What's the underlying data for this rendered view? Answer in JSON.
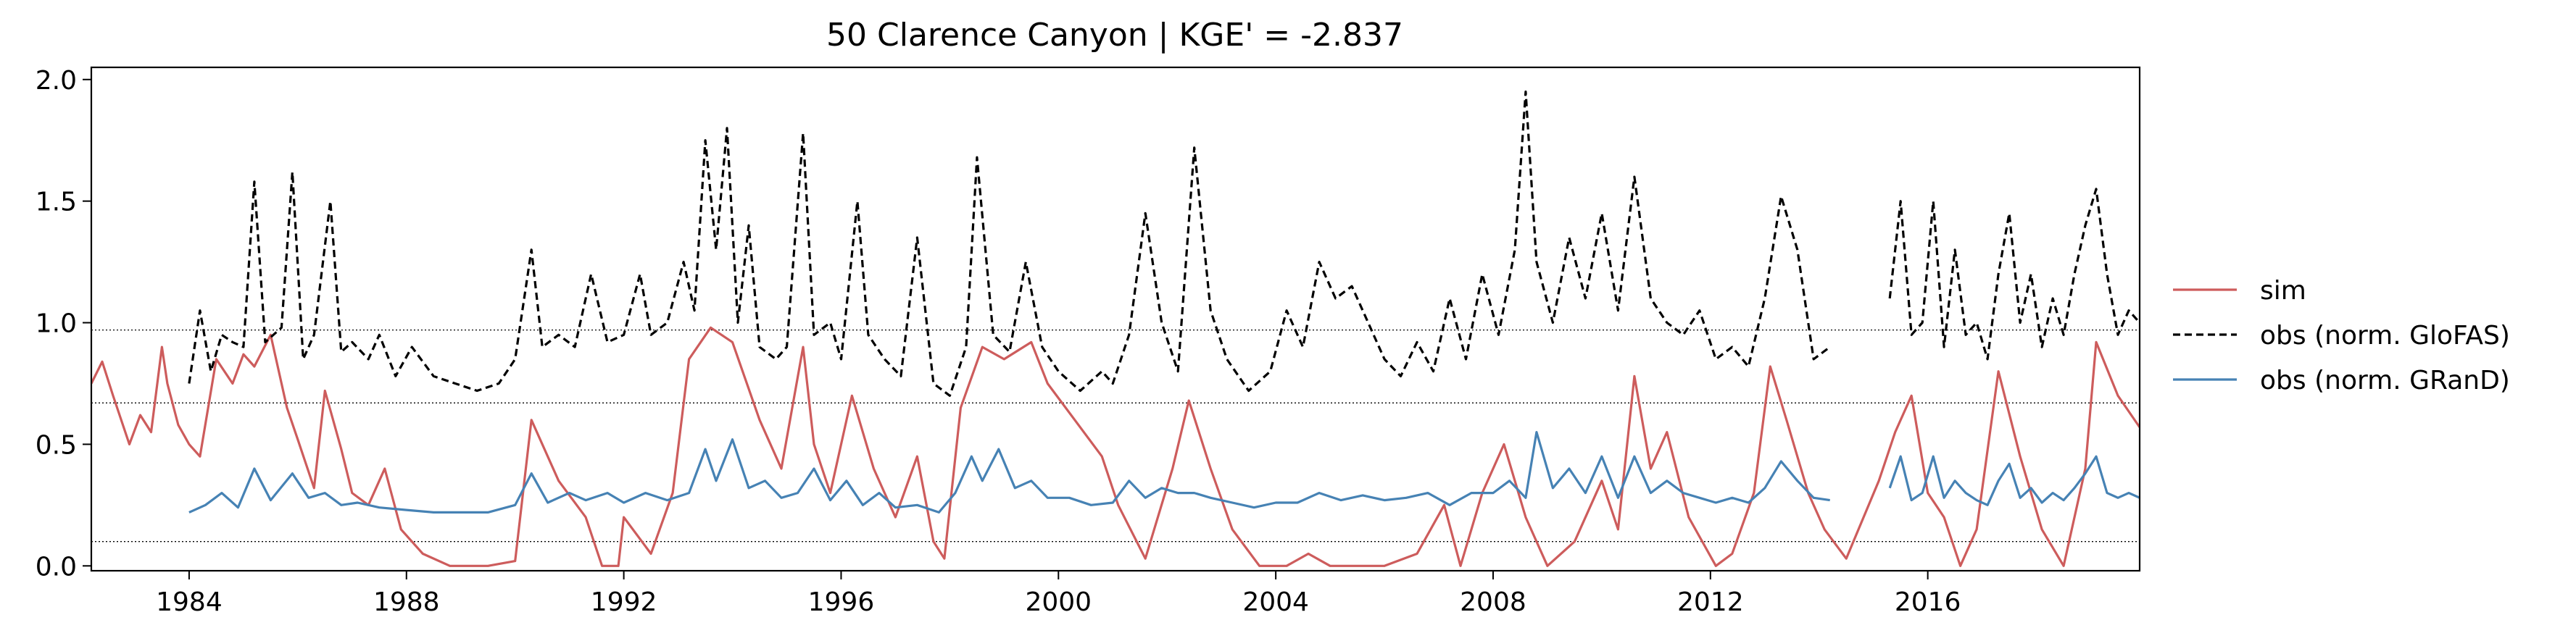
{
  "chart_data": {
    "type": "line",
    "title": "50  Clarence Canyon | KGE' = -2.837",
    "xlabel": "",
    "ylabel": "",
    "xlim": [
      1982.2,
      2019.9
    ],
    "ylim": [
      -0.02,
      2.05
    ],
    "x_ticks": [
      {
        "value": 1984,
        "label": "1984"
      },
      {
        "value": 1988,
        "label": "1988"
      },
      {
        "value": 1992,
        "label": "1992"
      },
      {
        "value": 1996,
        "label": "1996"
      },
      {
        "value": 2000,
        "label": "2000"
      },
      {
        "value": 2004,
        "label": "2004"
      },
      {
        "value": 2008,
        "label": "2008"
      },
      {
        "value": 2012,
        "label": "2012"
      },
      {
        "value": 2016,
        "label": "2016"
      }
    ],
    "y_ticks": [
      {
        "value": 0.0,
        "label": "0.0"
      },
      {
        "value": 0.5,
        "label": "0.5"
      },
      {
        "value": 1.0,
        "label": "1.0"
      },
      {
        "value": 1.5,
        "label": "1.5"
      },
      {
        "value": 2.0,
        "label": "2.0"
      }
    ],
    "hlines": [
      0.97,
      0.67,
      0.1
    ],
    "grid": false,
    "legend_position": "right-outside",
    "series": [
      {
        "name": "sim",
        "color": "#cd5c5c",
        "style": "solid",
        "x": [
          1982.2,
          1982.4,
          1982.6,
          1982.9,
          1983.1,
          1983.3,
          1983.5,
          1983.6,
          1983.8,
          1984.0,
          1984.2,
          1984.5,
          1984.8,
          1985.0,
          1985.2,
          1985.5,
          1985.8,
          1986.0,
          1986.3,
          1986.5,
          1986.8,
          1987.0,
          1987.3,
          1987.6,
          1987.9,
          1988.3,
          1988.8,
          1989.5,
          1990.0,
          1990.3,
          1990.8,
          1991.3,
          1991.6,
          1991.9,
          1992.0,
          1992.5,
          1992.9,
          1993.2,
          1993.6,
          1994.0,
          1994.5,
          1994.9,
          1995.3,
          1995.5,
          1995.8,
          1996.2,
          1996.6,
          1997.0,
          1997.4,
          1997.7,
          1997.9,
          1998.2,
          1998.6,
          1999.0,
          1999.5,
          1999.8,
          2000.3,
          2000.8,
          2001.1,
          2001.6,
          2002.1,
          2002.4,
          2002.8,
          2003.2,
          2003.7,
          2004.2,
          2004.6,
          2005.0,
          2005.5,
          2006.0,
          2006.6,
          2007.1,
          2007.4,
          2007.8,
          2008.2,
          2008.6,
          2009.0,
          2009.5,
          2010.0,
          2010.3,
          2010.6,
          2010.9,
          2011.2,
          2011.6,
          2012.1,
          2012.4,
          2012.8,
          2013.1,
          2013.4,
          2013.8,
          2014.1,
          2014.5,
          2015.1,
          2015.4,
          2015.7,
          2016.0,
          2016.3,
          2016.6,
          2016.9,
          2017.3,
          2017.7,
          2018.1,
          2018.5,
          2018.9,
          2019.1,
          2019.5,
          2019.9
        ],
        "y": [
          0.75,
          0.84,
          0.7,
          0.5,
          0.62,
          0.55,
          0.9,
          0.75,
          0.58,
          0.5,
          0.45,
          0.85,
          0.75,
          0.87,
          0.82,
          0.95,
          0.65,
          0.52,
          0.32,
          0.72,
          0.48,
          0.3,
          0.25,
          0.4,
          0.15,
          0.05,
          0.0,
          0.0,
          0.02,
          0.6,
          0.35,
          0.2,
          0.0,
          0.0,
          0.2,
          0.05,
          0.3,
          0.85,
          0.98,
          0.92,
          0.6,
          0.4,
          0.9,
          0.5,
          0.3,
          0.7,
          0.4,
          0.2,
          0.45,
          0.1,
          0.03,
          0.65,
          0.9,
          0.85,
          0.92,
          0.75,
          0.6,
          0.45,
          0.25,
          0.03,
          0.4,
          0.68,
          0.4,
          0.15,
          0.0,
          0.0,
          0.05,
          0.0,
          0.0,
          0.0,
          0.05,
          0.25,
          0.0,
          0.3,
          0.5,
          0.2,
          0.0,
          0.1,
          0.35,
          0.15,
          0.78,
          0.4,
          0.55,
          0.2,
          0.0,
          0.05,
          0.3,
          0.82,
          0.6,
          0.3,
          0.15,
          0.03,
          0.35,
          0.55,
          0.7,
          0.3,
          0.2,
          0.0,
          0.15,
          0.8,
          0.45,
          0.15,
          0.0,
          0.4,
          0.92,
          0.7,
          0.57
        ]
      },
      {
        "name": "obs (norm. GloFAS)",
        "color": "#000000",
        "style": "dashed",
        "x": [
          1984.0,
          1984.2,
          1984.4,
          1984.6,
          1984.8,
          1985.0,
          1985.2,
          1985.4,
          1985.7,
          1985.9,
          1986.1,
          1986.3,
          1986.6,
          1986.8,
          1987.0,
          1987.3,
          1987.5,
          1987.8,
          1988.1,
          1988.5,
          1988.9,
          1989.3,
          1989.7,
          1990.0,
          1990.3,
          1990.5,
          1990.8,
          1991.1,
          1991.4,
          1991.7,
          1992.0,
          1992.3,
          1992.5,
          1992.8,
          1993.1,
          1993.3,
          1993.5,
          1993.7,
          1993.9,
          1994.1,
          1994.3,
          1994.5,
          1994.8,
          1995.0,
          1995.3,
          1995.5,
          1995.8,
          1996.0,
          1996.3,
          1996.5,
          1996.8,
          1997.1,
          1997.4,
          1997.7,
          1998.0,
          1998.3,
          1998.5,
          1998.8,
          1999.1,
          1999.4,
          1999.7,
          2000.0,
          2000.4,
          2000.8,
          2001.0,
          2001.3,
          2001.6,
          2001.9,
          2002.2,
          2002.5,
          2002.8,
          2003.1,
          2003.5,
          2003.9,
          2004.2,
          2004.5,
          2004.8,
          2005.1,
          2005.4,
          2005.7,
          2006.0,
          2006.3,
          2006.6,
          2006.9,
          2007.2,
          2007.5,
          2007.8,
          2008.1,
          2008.4,
          2008.6,
          2008.8,
          2009.1,
          2009.4,
          2009.7,
          2010.0,
          2010.3,
          2010.6,
          2010.9,
          2011.2,
          2011.5,
          2011.8,
          2012.1,
          2012.4,
          2012.7,
          2013.0,
          2013.3,
          2013.6,
          2013.9,
          2014.2
        ],
        "y": [
          0.75,
          1.05,
          0.8,
          0.95,
          0.92,
          0.9,
          1.58,
          0.92,
          0.98,
          1.62,
          0.85,
          0.95,
          1.5,
          0.88,
          0.92,
          0.85,
          0.95,
          0.78,
          0.9,
          0.78,
          0.75,
          0.72,
          0.75,
          0.85,
          1.3,
          0.9,
          0.95,
          0.9,
          1.2,
          0.92,
          0.95,
          1.2,
          0.95,
          1.0,
          1.25,
          1.05,
          1.75,
          1.3,
          1.8,
          1.0,
          1.4,
          0.9,
          0.85,
          0.9,
          1.78,
          0.95,
          1.0,
          0.85,
          1.5,
          0.95,
          0.85,
          0.78,
          1.35,
          0.75,
          0.7,
          0.9,
          1.68,
          0.95,
          0.88,
          1.25,
          0.9,
          0.8,
          0.72,
          0.8,
          0.75,
          0.95,
          1.45,
          1.0,
          0.8,
          1.72,
          1.05,
          0.85,
          0.72,
          0.8,
          1.05,
          0.9,
          1.25,
          1.1,
          1.15,
          1.0,
          0.85,
          0.78,
          0.92,
          0.8,
          1.1,
          0.85,
          1.2,
          0.95,
          1.3,
          1.95,
          1.25,
          1.0,
          1.35,
          1.1,
          1.45,
          1.05,
          1.6,
          1.1,
          1.0,
          0.95,
          1.05,
          0.85,
          0.9,
          0.82,
          1.1,
          1.52,
          1.3,
          0.85,
          0.9
        ]
      },
      {
        "name": "obs (norm. GRanD)",
        "color": "#4682b4",
        "style": "solid",
        "x": [
          1984.0,
          1984.3,
          1984.6,
          1984.9,
          1985.2,
          1985.5,
          1985.9,
          1986.2,
          1986.5,
          1986.8,
          1987.1,
          1987.5,
          1988.0,
          1988.5,
          1989.0,
          1989.5,
          1990.0,
          1990.3,
          1990.6,
          1991.0,
          1991.3,
          1991.7,
          1992.0,
          1992.4,
          1992.8,
          1993.2,
          1993.5,
          1993.7,
          1994.0,
          1994.3,
          1994.6,
          1994.9,
          1995.2,
          1995.5,
          1995.8,
          1996.1,
          1996.4,
          1996.7,
          1997.0,
          1997.4,
          1997.8,
          1998.1,
          1998.4,
          1998.6,
          1998.9,
          1999.2,
          1999.5,
          1999.8,
          2000.2,
          2000.6,
          2001.0,
          2001.3,
          2001.6,
          2001.9,
          2002.2,
          2002.5,
          2002.8,
          2003.2,
          2003.6,
          2004.0,
          2004.4,
          2004.8,
          2005.2,
          2005.6,
          2006.0,
          2006.4,
          2006.8,
          2007.2,
          2007.6,
          2008.0,
          2008.3,
          2008.6,
          2008.8,
          2009.1,
          2009.4,
          2009.7,
          2010.0,
          2010.3,
          2010.6,
          2010.9,
          2011.2,
          2011.5,
          2011.8,
          2012.1,
          2012.4,
          2012.7,
          2013.0,
          2013.3,
          2013.6,
          2013.9,
          2014.2
        ],
        "y": [
          0.22,
          0.25,
          0.3,
          0.24,
          0.4,
          0.27,
          0.38,
          0.28,
          0.3,
          0.25,
          0.26,
          0.24,
          0.23,
          0.22,
          0.22,
          0.22,
          0.25,
          0.38,
          0.26,
          0.3,
          0.27,
          0.3,
          0.26,
          0.3,
          0.27,
          0.3,
          0.48,
          0.35,
          0.52,
          0.32,
          0.35,
          0.28,
          0.3,
          0.4,
          0.27,
          0.35,
          0.25,
          0.3,
          0.24,
          0.25,
          0.22,
          0.3,
          0.45,
          0.35,
          0.48,
          0.32,
          0.35,
          0.28,
          0.28,
          0.25,
          0.26,
          0.35,
          0.28,
          0.32,
          0.3,
          0.3,
          0.28,
          0.26,
          0.24,
          0.26,
          0.26,
          0.3,
          0.27,
          0.29,
          0.27,
          0.28,
          0.3,
          0.25,
          0.3,
          0.3,
          0.35,
          0.28,
          0.55,
          0.32,
          0.4,
          0.3,
          0.45,
          0.28,
          0.45,
          0.3,
          0.35,
          0.3,
          0.28,
          0.26,
          0.28,
          0.26,
          0.32,
          0.43,
          0.35,
          0.28,
          0.27
        ]
      },
      {
        "name": "",
        "color": "#000000",
        "style": "dashed",
        "x": [
          2015.3,
          2015.5,
          2015.7,
          2015.9,
          2016.1,
          2016.3,
          2016.5,
          2016.7,
          2016.9,
          2017.1,
          2017.3,
          2017.5,
          2017.7,
          2017.9,
          2018.1,
          2018.3,
          2018.5,
          2018.7,
          2018.9,
          2019.1,
          2019.3,
          2019.5,
          2019.7,
          2019.9
        ],
        "y": [
          1.1,
          1.5,
          0.95,
          1.0,
          1.5,
          0.9,
          1.3,
          0.95,
          1.0,
          0.85,
          1.2,
          1.45,
          1.0,
          1.2,
          0.9,
          1.1,
          0.95,
          1.2,
          1.4,
          1.55,
          1.2,
          0.95,
          1.05,
          1.0
        ]
      },
      {
        "name": "",
        "color": "#4682b4",
        "style": "solid",
        "x": [
          2015.3,
          2015.5,
          2015.7,
          2015.9,
          2016.1,
          2016.3,
          2016.5,
          2016.7,
          2016.9,
          2017.1,
          2017.3,
          2017.5,
          2017.7,
          2017.9,
          2018.1,
          2018.3,
          2018.5,
          2018.7,
          2018.9,
          2019.1,
          2019.3,
          2019.5,
          2019.7,
          2019.9
        ],
        "y": [
          0.32,
          0.45,
          0.27,
          0.3,
          0.45,
          0.28,
          0.35,
          0.3,
          0.27,
          0.25,
          0.35,
          0.42,
          0.28,
          0.32,
          0.26,
          0.3,
          0.27,
          0.32,
          0.38,
          0.45,
          0.3,
          0.28,
          0.3,
          0.28
        ]
      }
    ]
  }
}
